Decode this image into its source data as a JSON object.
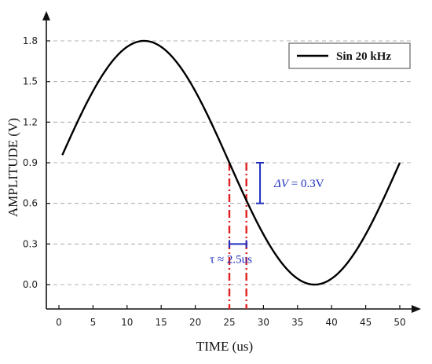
{
  "chart_data": {
    "type": "line",
    "title": "",
    "xlabel": "TIME (us)",
    "ylabel": "AMPLITUDE (V)",
    "xlim": [
      -2,
      52
    ],
    "ylim": [
      -0.2,
      2.0
    ],
    "x_ticks": [
      0,
      5,
      10,
      15,
      20,
      25,
      30,
      35,
      40,
      45,
      50
    ],
    "x_tick_labels": [
      "0",
      "5",
      "10",
      "15",
      "20",
      "25",
      "30",
      "35",
      "40",
      "45",
      "50"
    ],
    "y_ticks": [
      0.0,
      0.3,
      0.6,
      0.9,
      1.2,
      1.5,
      1.8
    ],
    "y_tick_labels": [
      "0.0",
      "0.3",
      "0.6",
      "0.9",
      "1.2",
      "1.5",
      "1.8"
    ],
    "grid": "horizontal dashed",
    "legend_position": "top-right",
    "series": [
      {
        "name": "Sin 20 kHz",
        "color": "#000000",
        "function": "0.9 + 0.9*sin(2*pi*20000*t)",
        "x": [
          0.5,
          2.5,
          5,
          7.5,
          10,
          12.5,
          15,
          17.5,
          20,
          22.5,
          25,
          27.5,
          30,
          32.5,
          35,
          37.5,
          40,
          42.5,
          45,
          47.5,
          50
        ],
        "values": [
          0.96,
          1.19,
          1.42,
          1.63,
          1.76,
          1.8,
          1.76,
          1.63,
          1.43,
          1.18,
          0.9,
          0.62,
          0.37,
          0.17,
          0.04,
          0.0,
          0.04,
          0.17,
          0.37,
          0.62,
          0.9
        ]
      }
    ],
    "annotations": {
      "vlines": [
        {
          "x": 25,
          "color": "#e02020"
        },
        {
          "x": 27.5,
          "color": "#e02020"
        }
      ],
      "delta_v": {
        "label_prefix": "ΔV",
        "label_suffix": " = 0.3V",
        "x": 29.5,
        "y_from": 0.6,
        "y_to": 0.9,
        "color": "#1f2fbf"
      },
      "tau": {
        "label": "τ ≈ 2.5us",
        "x_from": 25,
        "x_to": 27.5,
        "y": 0.3,
        "color": "#1f2fbf"
      }
    }
  }
}
